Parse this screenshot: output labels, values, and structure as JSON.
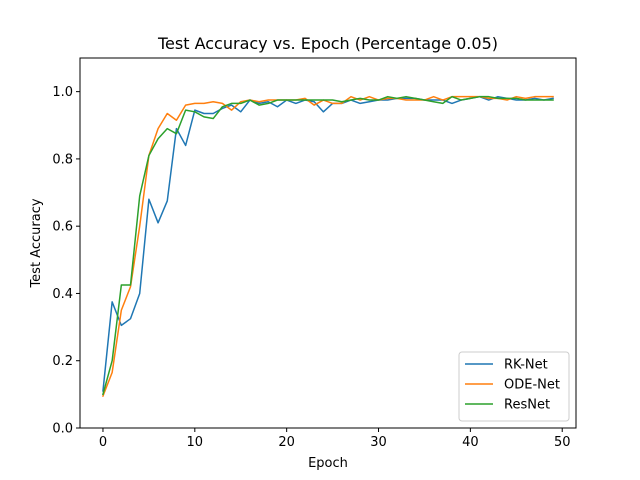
{
  "chart_data": {
    "type": "line",
    "title": "Test Accuracy vs. Epoch (Percentage 0.05)",
    "xlabel": "Epoch",
    "ylabel": "Test Accuracy",
    "xlim": [
      -2.5,
      51.5
    ],
    "ylim": [
      0.0,
      1.1
    ],
    "xticks": [
      0,
      10,
      20,
      30,
      40,
      50
    ],
    "xtick_labels": [
      "0",
      "10",
      "20",
      "30",
      "40",
      "50"
    ],
    "yticks": [
      0.0,
      0.2,
      0.4,
      0.6,
      0.8,
      1.0
    ],
    "ytick_labels": [
      "0.0",
      "0.2",
      "0.4",
      "0.6",
      "0.8",
      "1.0"
    ],
    "grid": false,
    "legend_position": "lower-right",
    "x": [
      0,
      1,
      2,
      3,
      4,
      5,
      6,
      7,
      8,
      9,
      10,
      11,
      12,
      13,
      14,
      15,
      16,
      17,
      18,
      19,
      20,
      21,
      22,
      23,
      24,
      25,
      26,
      27,
      28,
      29,
      30,
      31,
      32,
      33,
      34,
      35,
      36,
      37,
      38,
      39,
      40,
      41,
      42,
      43,
      44,
      45,
      46,
      47,
      48,
      49
    ],
    "series": [
      {
        "name": "RK-Net",
        "color": "#1f77b4",
        "values": [
          0.11,
          0.375,
          0.305,
          0.325,
          0.4,
          0.68,
          0.61,
          0.675,
          0.89,
          0.84,
          0.945,
          0.935,
          0.935,
          0.95,
          0.96,
          0.94,
          0.975,
          0.965,
          0.97,
          0.955,
          0.975,
          0.965,
          0.975,
          0.97,
          0.94,
          0.965,
          0.965,
          0.975,
          0.965,
          0.97,
          0.975,
          0.975,
          0.98,
          0.98,
          0.98,
          0.975,
          0.975,
          0.975,
          0.965,
          0.975,
          0.98,
          0.985,
          0.975,
          0.985,
          0.98,
          0.975,
          0.975,
          0.98,
          0.975,
          0.98
        ]
      },
      {
        "name": "ODE-Net",
        "color": "#ff7f0e",
        "values": [
          0.095,
          0.165,
          0.35,
          0.42,
          0.6,
          0.81,
          0.89,
          0.935,
          0.915,
          0.96,
          0.965,
          0.965,
          0.97,
          0.965,
          0.945,
          0.97,
          0.975,
          0.97,
          0.975,
          0.975,
          0.975,
          0.975,
          0.98,
          0.96,
          0.975,
          0.965,
          0.965,
          0.985,
          0.975,
          0.985,
          0.975,
          0.98,
          0.98,
          0.975,
          0.975,
          0.975,
          0.985,
          0.975,
          0.985,
          0.985,
          0.985,
          0.985,
          0.98,
          0.98,
          0.975,
          0.985,
          0.98,
          0.985,
          0.985,
          0.985
        ]
      },
      {
        "name": "ResNet",
        "color": "#2ca02c",
        "values": [
          0.1,
          0.2,
          0.425,
          0.425,
          0.69,
          0.81,
          0.86,
          0.89,
          0.875,
          0.945,
          0.94,
          0.925,
          0.92,
          0.955,
          0.965,
          0.965,
          0.975,
          0.96,
          0.965,
          0.975,
          0.975,
          0.975,
          0.975,
          0.975,
          0.975,
          0.975,
          0.97,
          0.975,
          0.98,
          0.975,
          0.975,
          0.985,
          0.98,
          0.985,
          0.98,
          0.975,
          0.97,
          0.965,
          0.985,
          0.975,
          0.98,
          0.985,
          0.985,
          0.98,
          0.98,
          0.98,
          0.975,
          0.975,
          0.975,
          0.975
        ]
      }
    ]
  }
}
